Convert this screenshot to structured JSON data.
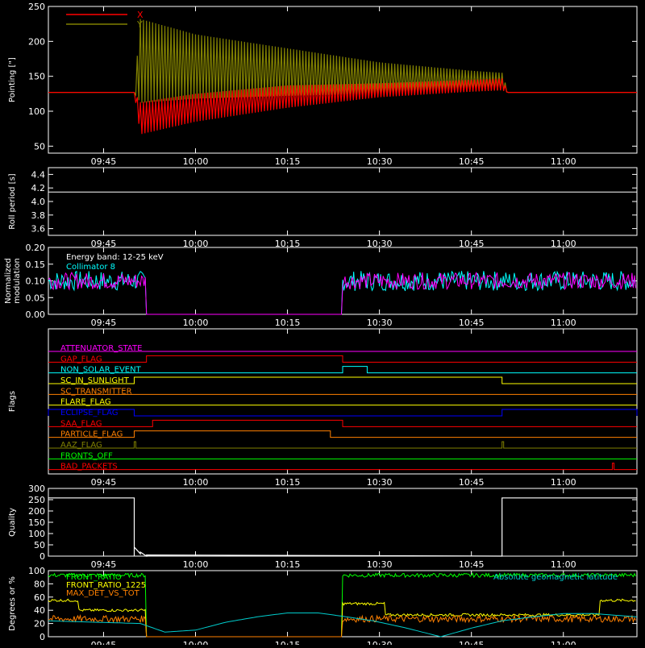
{
  "chart_data": [
    {
      "type": "line",
      "ylabel": "Pointing [\"]",
      "x_ticks": [
        "09:45",
        "10:00",
        "10:15",
        "10:30",
        "10:45",
        "11:00"
      ],
      "y_ticks": [
        "50",
        "100",
        "150",
        "200",
        "250"
      ],
      "ylim": [
        40,
        250
      ],
      "legend": [
        "X",
        "Y"
      ],
      "legend_placement": "top-left",
      "series": [
        {
          "name": "X",
          "color": "#ff0000",
          "x": [
            "09:36",
            "09:50",
            "09:51",
            "10:00",
            "10:15",
            "10:30",
            "10:45",
            "10:50",
            "10:51",
            "11:12"
          ],
          "envelope_low": [
            127,
            127,
            67,
            85,
            105,
            120,
            128,
            130,
            127,
            127
          ],
          "envelope_high": [
            127,
            127,
            113,
            125,
            137,
            140,
            145,
            147,
            127,
            127
          ]
        },
        {
          "name": "Y",
          "color": "#808000",
          "x": [
            "09:36",
            "09:50",
            "09:51",
            "10:00",
            "10:15",
            "10:30",
            "10:45",
            "10:50",
            "10:51",
            "11:12"
          ],
          "envelope_low": [
            127,
            127,
            112,
            118,
            122,
            125,
            128,
            130,
            127,
            127
          ],
          "envelope_high": [
            127,
            127,
            232,
            210,
            190,
            170,
            158,
            155,
            127,
            127
          ]
        }
      ]
    },
    {
      "type": "line",
      "ylabel": "Roll period [s]",
      "x_ticks": [
        "09:45",
        "10:00",
        "10:15",
        "10:30",
        "10:45",
        "11:00"
      ],
      "y_ticks": [
        "3.6",
        "3.8",
        "4.0",
        "4.2",
        "4.4"
      ],
      "ylim": [
        3.5,
        4.5
      ],
      "series": [
        {
          "color": "#ffffff",
          "x": [
            "09:36",
            "11:12"
          ],
          "y": [
            4.14,
            4.14
          ]
        }
      ]
    },
    {
      "type": "line",
      "ylabel": "Normalized\nmodulation",
      "x_ticks": [
        "09:45",
        "10:00",
        "10:15",
        "10:30",
        "10:45",
        "11:00"
      ],
      "y_ticks": [
        "0.00",
        "0.05",
        "0.10",
        "0.15",
        "0.20"
      ],
      "ylim": [
        0,
        0.2
      ],
      "legend": [
        "Energy band: 12-25 keV",
        "Collimator 8"
      ],
      "legend_placement": "top-left",
      "series": [
        {
          "color": "#00ffff",
          "x": [
            "09:36",
            "09:52",
            "09:52",
            "10:24",
            "10:24",
            "11:12"
          ],
          "y": [
            0.1,
            0.1,
            0,
            0,
            0.1,
            0.1
          ],
          "noise": 0.03
        },
        {
          "color": "#ff00ff",
          "x": [
            "09:36",
            "09:52",
            "09:52",
            "10:24",
            "10:24",
            "11:12"
          ],
          "y": [
            0.1,
            0.1,
            0,
            0,
            0.1,
            0.1
          ],
          "noise": 0.025
        }
      ]
    },
    {
      "type": "line",
      "ylabel": "Flags",
      "x_ticks": [
        "09:45",
        "10:00",
        "10:15",
        "10:30",
        "10:45",
        "11:00"
      ],
      "flags": [
        {
          "name": "ATTENUATOR_STATE",
          "color": "#ff00ff",
          "steps": []
        },
        {
          "name": "GAP_FLAG",
          "color": "#ff0000",
          "steps": [
            [
              "09:52",
              "10:24"
            ]
          ]
        },
        {
          "name": "NON_SOLAR_EVENT",
          "color": "#00ffff",
          "steps": [
            [
              "10:24",
              "10:28"
            ]
          ]
        },
        {
          "name": "SC_IN_SUNLIGHT",
          "color": "#ffff00",
          "steps": [
            [
              "09:50",
              "10:50"
            ]
          ]
        },
        {
          "name": "SC_TRANSMITTER",
          "color": "#ff8000",
          "steps": []
        },
        {
          "name": "FLARE_FLAG",
          "color": "#ffff00",
          "steps": []
        },
        {
          "name": "ECLIPSE_FLAG",
          "color": "#0000ff",
          "steps": [
            [
              "09:36",
              "09:50"
            ],
            [
              "10:50",
              "11:12"
            ]
          ]
        },
        {
          "name": "SAA_FLAG",
          "color": "#ff0000",
          "steps": [
            [
              "09:53",
              "10:24"
            ]
          ]
        },
        {
          "name": "PARTICLE_FLAG",
          "color": "#ff8000",
          "steps": [
            [
              "09:50",
              "10:22"
            ]
          ]
        },
        {
          "name": "AAZ_FLAG",
          "color": "#808000",
          "steps": [
            [
              "09:50",
              "09:50"
            ],
            [
              "10:50",
              "10:50"
            ]
          ]
        },
        {
          "name": "FRONTS_OFF",
          "color": "#00ff00",
          "steps": []
        },
        {
          "name": "BAD_PACKETS",
          "color": "#ff0000",
          "steps": [
            [
              "11:08",
              "11:08"
            ]
          ]
        }
      ]
    },
    {
      "type": "line",
      "ylabel": "Quality",
      "x_ticks": [
        "09:45",
        "10:00",
        "10:15",
        "10:30",
        "10:45",
        "11:00"
      ],
      "y_ticks": [
        "0",
        "50",
        "100",
        "150",
        "200",
        "250",
        "300"
      ],
      "ylim": [
        0,
        300
      ],
      "series": [
        {
          "color": "#ffffff",
          "x": [
            "09:36",
            "09:50",
            "09:50",
            "09:50",
            "09:51",
            "09:51",
            "09:52",
            "09:52",
            "10:50",
            "10:50",
            "11:12"
          ],
          "y": [
            258,
            258,
            0,
            40,
            10,
            18,
            0,
            5,
            0,
            258,
            258
          ]
        }
      ]
    },
    {
      "type": "line",
      "ylabel": "Degrees or %",
      "x_ticks": [
        "09:45",
        "10:00",
        "10:15",
        "10:30",
        "10:45",
        "11:00"
      ],
      "y_ticks": [
        "0",
        "20",
        "40",
        "60",
        "80",
        "100"
      ],
      "ylim": [
        0,
        100
      ],
      "legend": [
        "FRONT_RATIO",
        "FRONT_RATIO_1225",
        "MAX_DET_VS_TOT",
        "Absolute geomagnetic latitude"
      ],
      "legend_placement": "top-left",
      "series": [
        {
          "name": "FRONT_RATIO",
          "color": "#00ff00",
          "x": [
            "09:36",
            "09:52",
            "09:52",
            "10:24",
            "10:24",
            "11:12"
          ],
          "y": [
            93,
            93,
            0,
            0,
            93,
            93
          ],
          "noise": 3
        },
        {
          "name": "FRONT_RATIO_1225",
          "color": "#ffff00",
          "x": [
            "09:36",
            "09:41",
            "09:41",
            "09:52",
            "09:52",
            "10:24",
            "10:24",
            "10:31",
            "10:31",
            "11:06",
            "11:06",
            "11:12"
          ],
          "y": [
            55,
            55,
            40,
            40,
            0,
            0,
            50,
            50,
            33,
            33,
            55,
            55
          ],
          "noise": 2
        },
        {
          "name": "MAX_DET_VS_TOT",
          "color": "#ff8000",
          "x": [
            "09:36",
            "09:52",
            "09:52",
            "10:24",
            "10:24",
            "11:12"
          ],
          "y": [
            27,
            27,
            0,
            0,
            27,
            27
          ],
          "noise": 5
        },
        {
          "name": "Absolute geomagnetic latitude",
          "color": "#00cccc",
          "x": [
            "09:36",
            "09:51",
            "09:55",
            "10:00",
            "10:05",
            "10:10",
            "10:15",
            "10:20",
            "10:24",
            "10:29",
            "10:34",
            "10:40",
            "10:45",
            "10:50",
            "10:55",
            "11:00",
            "11:05",
            "11:12"
          ],
          "y": [
            24,
            20,
            7,
            10,
            22,
            30,
            36,
            36,
            31,
            24,
            14,
            0,
            13,
            24,
            30,
            35,
            35,
            30
          ]
        }
      ]
    }
  ]
}
